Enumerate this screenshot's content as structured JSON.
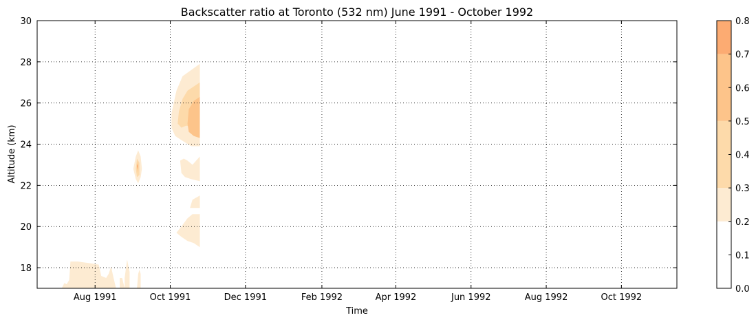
{
  "chart_data": {
    "type": "contourf",
    "title": "Backscatter ratio at Toronto (532 nm) June 1991 - October 1992",
    "xlabel": "Time",
    "ylabel": "Altitude (km)",
    "xlim": [
      "1991-06-15",
      "1992-11-15"
    ],
    "ylim": [
      17,
      30
    ],
    "x_ticks": [
      {
        "date": "1991-08-01",
        "label": "Aug 1991"
      },
      {
        "date": "1991-10-01",
        "label": "Oct 1991"
      },
      {
        "date": "1991-12-01",
        "label": "Dec 1991"
      },
      {
        "date": "1992-02-01",
        "label": "Feb 1992"
      },
      {
        "date": "1992-04-01",
        "label": "Apr 1992"
      },
      {
        "date": "1992-06-01",
        "label": "Jun 1992"
      },
      {
        "date": "1992-08-01",
        "label": "Aug 1992"
      },
      {
        "date": "1992-10-01",
        "label": "Oct 1992"
      }
    ],
    "y_ticks": [
      18,
      20,
      22,
      24,
      26,
      28,
      30
    ],
    "grid": true,
    "grid_style": "dotted",
    "colorbar": {
      "ticks": [
        "0.0",
        "0.1",
        "0.2",
        "0.3",
        "0.4",
        "0.5",
        "0.6",
        "0.7",
        "0.8"
      ],
      "levels": [
        {
          "from": 0.0,
          "to": 0.2,
          "color": "#ffffff"
        },
        {
          "from": 0.2,
          "to": 0.3,
          "color": "#fdebd2"
        },
        {
          "from": 0.3,
          "to": 0.5,
          "color": "#fddaaa"
        },
        {
          "from": 0.5,
          "to": 0.7,
          "color": "#fdc48a"
        },
        {
          "from": 0.7,
          "to": 0.8,
          "color": "#fcab72"
        }
      ]
    },
    "regions": [
      {
        "level": "0.2-0.3",
        "points": [
          [
            "1991-07-05",
            17
          ],
          [
            "1991-07-07",
            17.25
          ],
          [
            "1991-07-09",
            17.2
          ],
          [
            "1991-07-11",
            17.4
          ],
          [
            "1991-07-12",
            18.3
          ],
          [
            "1991-07-18",
            18.3
          ],
          [
            "1991-07-24",
            18.25
          ],
          [
            "1991-07-30",
            18.2
          ],
          [
            "1991-08-04",
            18.15
          ],
          [
            "1991-08-06",
            17.6
          ],
          [
            "1991-08-10",
            17.5
          ],
          [
            "1991-08-12",
            17.7
          ],
          [
            "1991-08-14",
            18.05
          ],
          [
            "1991-08-16",
            17.5
          ],
          [
            "1991-08-18",
            17
          ],
          [
            "1991-07-05",
            17
          ]
        ]
      },
      {
        "level": "0.2-0.3",
        "points": [
          [
            "1991-08-21",
            17.5
          ],
          [
            "1991-08-23",
            17.5
          ],
          [
            "1991-08-25",
            17
          ],
          [
            "1991-08-21",
            17
          ]
        ]
      },
      {
        "level": "0.2-0.3",
        "points": [
          [
            "1991-08-25",
            17.5
          ],
          [
            "1991-08-27",
            18.4
          ],
          [
            "1991-08-29",
            17.8
          ],
          [
            "1991-08-29",
            17
          ],
          [
            "1991-08-25",
            17
          ]
        ]
      },
      {
        "level": "0.2-0.3",
        "points": [
          [
            "1991-09-04",
            17
          ],
          [
            "1991-09-05",
            17.7
          ],
          [
            "1991-09-06",
            17.9
          ],
          [
            "1991-09-07",
            17.7
          ],
          [
            "1991-09-07",
            17
          ],
          [
            "1991-09-04",
            17
          ]
        ]
      },
      {
        "level": "0.2-0.3",
        "points": [
          [
            "1991-09-01",
            22.8
          ],
          [
            "1991-09-03",
            23.4
          ],
          [
            "1991-09-05",
            23.7
          ],
          [
            "1991-09-07",
            23.4
          ],
          [
            "1991-09-08",
            22.8
          ],
          [
            "1991-09-07",
            22.4
          ],
          [
            "1991-09-05",
            22.1
          ],
          [
            "1991-09-03",
            22.3
          ],
          [
            "1991-09-01",
            22.8
          ]
        ]
      },
      {
        "level": "0.2-0.3",
        "points": [
          [
            "1991-10-02",
            24.8
          ],
          [
            "1991-10-02",
            25.5
          ],
          [
            "1991-10-06",
            26.6
          ],
          [
            "1991-10-11",
            27.3
          ],
          [
            "1991-10-18",
            27.6
          ],
          [
            "1991-10-25",
            27.9
          ],
          [
            "1991-10-25",
            23.9
          ],
          [
            "1991-10-18",
            23.9
          ],
          [
            "1991-10-10",
            24.2
          ],
          [
            "1991-10-05",
            24.4
          ],
          [
            "1991-10-02",
            24.8
          ]
        ]
      },
      {
        "level": "0.2-0.3",
        "points": [
          [
            "1991-10-09",
            23.2
          ],
          [
            "1991-10-12",
            23.3
          ],
          [
            "1991-10-15",
            23.2
          ],
          [
            "1991-10-19",
            23.0
          ],
          [
            "1991-10-25",
            23.4
          ],
          [
            "1991-10-25",
            22.2
          ],
          [
            "1991-10-18",
            22.3
          ],
          [
            "1991-10-13",
            22.4
          ],
          [
            "1991-10-10",
            22.6
          ],
          [
            "1991-10-09",
            23.2
          ]
        ]
      },
      {
        "level": "0.2-0.3",
        "points": [
          [
            "1991-10-17",
            20.9
          ],
          [
            "1991-10-19",
            21.3
          ],
          [
            "1991-10-25",
            21.5
          ],
          [
            "1991-10-25",
            20.9
          ],
          [
            "1991-10-17",
            20.9
          ]
        ]
      },
      {
        "level": "0.2-0.3",
        "points": [
          [
            "1991-10-06",
            19.7
          ],
          [
            "1991-10-10",
            20.0
          ],
          [
            "1991-10-15",
            20.4
          ],
          [
            "1991-10-19",
            20.6
          ],
          [
            "1991-10-25",
            20.6
          ],
          [
            "1991-10-25",
            19.0
          ],
          [
            "1991-10-20",
            19.2
          ],
          [
            "1991-10-15",
            19.3
          ],
          [
            "1991-10-10",
            19.5
          ],
          [
            "1991-10-06",
            19.7
          ]
        ]
      },
      {
        "level": "0.3-0.5",
        "points": [
          [
            "1991-09-03",
            22.8
          ],
          [
            "1991-09-04",
            23.3
          ],
          [
            "1991-09-06",
            23.1
          ],
          [
            "1991-09-06",
            22.5
          ],
          [
            "1991-09-04",
            22.4
          ],
          [
            "1991-09-03",
            22.8
          ]
        ]
      },
      {
        "level": "0.3-0.5",
        "points": [
          [
            "1991-10-07",
            25.0
          ],
          [
            "1991-10-08",
            25.6
          ],
          [
            "1991-10-11",
            26.2
          ],
          [
            "1991-10-15",
            26.6
          ],
          [
            "1991-10-20",
            26.8
          ],
          [
            "1991-10-25",
            27.0
          ],
          [
            "1991-10-25",
            24.7
          ],
          [
            "1991-10-20",
            24.8
          ],
          [
            "1991-10-14",
            24.9
          ],
          [
            "1991-10-10",
            24.8
          ],
          [
            "1991-10-07",
            25.0
          ]
        ]
      },
      {
        "level": "0.5-0.7",
        "points": [
          [
            "1991-10-15",
            25.0
          ],
          [
            "1991-10-16",
            25.7
          ],
          [
            "1991-10-20",
            26.1
          ],
          [
            "1991-10-25",
            26.3
          ],
          [
            "1991-10-25",
            24.3
          ],
          [
            "1991-10-20",
            24.4
          ],
          [
            "1991-10-16",
            24.6
          ],
          [
            "1991-10-15",
            25.0
          ]
        ]
      },
      {
        "level": "0.5-0.7",
        "points": [
          [
            "1991-09-04",
            22.9
          ],
          [
            "1991-09-05",
            23.2
          ],
          [
            "1991-09-05",
            22.6
          ],
          [
            "1991-09-04",
            22.9
          ]
        ]
      },
      {
        "level": "0.7-0.8",
        "points": [
          [
            "1991-09-04",
            22.95
          ],
          [
            "1991-09-05",
            23.05
          ],
          [
            "1991-09-05",
            22.75
          ],
          [
            "1991-09-04",
            22.95
          ]
        ]
      }
    ]
  }
}
